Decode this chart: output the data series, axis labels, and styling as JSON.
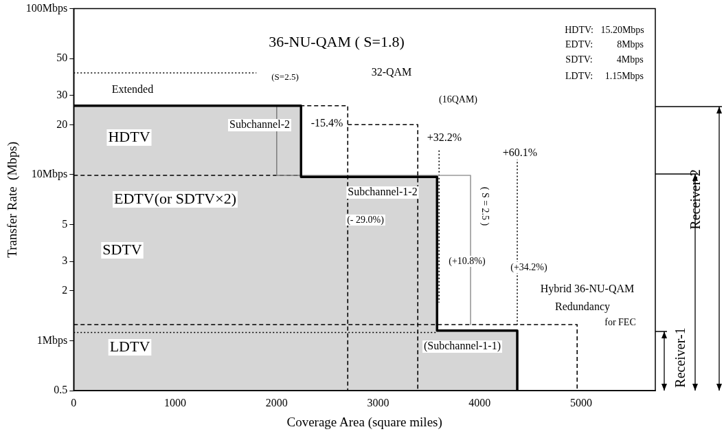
{
  "chart_data": {
    "type": "line",
    "xlabel": "Coverage Area (square miles)",
    "ylabel": "Transfer Rate  (Mbps)",
    "xlim": [
      0,
      5730
    ],
    "xticks": [
      0,
      1000,
      2000,
      3000,
      4000,
      5000
    ],
    "ylim": [
      0.5,
      100
    ],
    "yticks": [
      0.5,
      {
        "value": 1,
        "label": "1Mbps"
      },
      2,
      3,
      5,
      {
        "value": 10,
        "label": "10Mbps"
      },
      20,
      30,
      50,
      {
        "value": 100,
        "label": "100Mbps"
      }
    ],
    "log": "y",
    "grid": false,
    "legend": false,
    "marker": "none",
    "series": [
      {
        "type": "area",
        "color": "#000000",
        "x": [
          0,
          2240,
          2240,
          3580,
          3580,
          4370,
          4370
        ],
        "values": [
          26,
          26,
          9.7,
          9.7,
          1.15,
          1.15,
          0.5
        ]
      },
      {
        "color": "#000000",
        "line_style": "dashed",
        "x": [
          0,
          2700,
          2700
        ],
        "values": [
          26,
          26,
          0.5
        ]
      },
      {
        "color": "#000000",
        "line_style": "dashed",
        "x": [
          2700,
          3390,
          3390
        ],
        "values": [
          20,
          20,
          0.5
        ]
      },
      {
        "color": "#999999",
        "line_style": "solid",
        "x": [
          2000,
          2000,
          3910,
          3910
        ],
        "values": [
          26,
          9.9,
          9.9,
          1.25
        ]
      },
      {
        "color": "#000000",
        "line_style": "dotted",
        "x": [
          0,
          1800
        ],
        "values": [
          41,
          41
        ]
      },
      {
        "color": "#000000",
        "line_style": "dashed",
        "x": [
          0,
          2240
        ],
        "values": [
          9.9,
          9.9
        ]
      },
      {
        "color": "#000000",
        "line_style": "dashed",
        "x": [
          0,
          4960,
          4960
        ],
        "values": [
          1.25,
          1.25,
          0.5
        ]
      },
      {
        "color": "#000000",
        "line_style": "dotted",
        "x": [
          0,
          3580
        ],
        "values": [
          1.12,
          1.12
        ]
      },
      {
        "color": "#000000",
        "line_style": "dotted",
        "x": [
          3600,
          3600
        ],
        "values": [
          14,
          1.7
        ]
      },
      {
        "color": "#000000",
        "line_style": "dotted",
        "x": [
          4370,
          4370
        ],
        "values": [
          12.5,
          1.25
        ]
      }
    ],
    "annotations": [
      "36-NU-QAM ( S=1.8)",
      "32-QAM",
      "(16QAM)",
      "(S=2.5)",
      "Extended",
      "HDTV",
      "Subchannel-2",
      "-15.4%",
      "+32.2%",
      "+60.1%",
      "EDTV(or SDTV×2)",
      "Subchannel-1-2",
      "( S = 2.5 )",
      "(- 29.0%)",
      "SDTV",
      "(+10.8%)",
      "(+34.2%)",
      "Hybrid 36-NU-QAM",
      "Redundancy",
      "for FEC",
      "(Subchannel-1-1)",
      "LDTV",
      "HDTV:   15.20Mbps",
      "EDTV:          8Mbps",
      "SDTV:          4Mbps",
      "LDTV:     1.15Mbps",
      "Receiver-1",
      "Receiver-2"
    ]
  }
}
